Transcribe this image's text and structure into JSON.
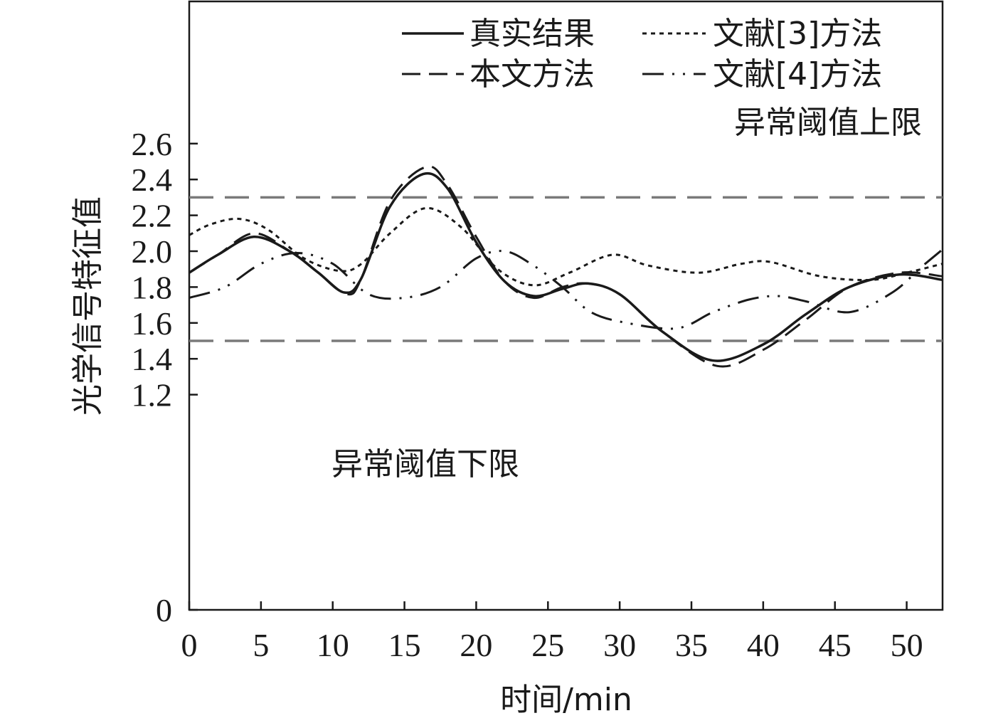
{
  "chart_data": {
    "type": "line",
    "title": "",
    "xlabel": "时间/min",
    "ylabel": "光学信号特征值",
    "xlim": [
      0,
      52.5
    ],
    "ylim": [
      0,
      2.7
    ],
    "x_ticks": [
      0,
      5,
      10,
      15,
      20,
      25,
      30,
      35,
      40,
      45,
      50
    ],
    "y_ticks": [
      0,
      1.2,
      1.4,
      1.6,
      1.8,
      2.0,
      2.2,
      2.4,
      2.6
    ],
    "y_tick_labels": [
      "0",
      "1.2",
      "1.4",
      "1.6",
      "1.8",
      "2.0",
      "2.2",
      "2.4",
      "2.6"
    ],
    "grid": false,
    "legend_position": "top-right",
    "thresholds": [
      {
        "label": "异常阈值上限",
        "value": 2.3
      },
      {
        "label": "异常阈值下限",
        "value": 1.5
      }
    ],
    "series": [
      {
        "name": "真实结果",
        "style": "solid",
        "x": [
          0,
          2,
          4.5,
          7,
          9,
          10.8,
          12,
          14,
          16.3,
          18,
          20,
          22,
          24,
          26,
          27.8,
          30,
          33,
          36.5,
          40,
          43,
          46,
          49.5,
          52.5
        ],
        "y": [
          1.88,
          1.98,
          2.08,
          2.0,
          1.88,
          1.77,
          1.85,
          2.25,
          2.43,
          2.35,
          2.05,
          1.83,
          1.75,
          1.79,
          1.82,
          1.76,
          1.55,
          1.39,
          1.48,
          1.65,
          1.8,
          1.87,
          1.84
        ]
      },
      {
        "name": "本文方法",
        "style": "dashed",
        "x": [
          0,
          2,
          4.5,
          7,
          9,
          11,
          12,
          14,
          16.5,
          18,
          20,
          22,
          24,
          26,
          27.8,
          30,
          33,
          36.8,
          40,
          43,
          46,
          49.5,
          52.5
        ],
        "y": [
          1.88,
          1.98,
          2.1,
          2.0,
          1.88,
          1.76,
          1.85,
          2.28,
          2.47,
          2.37,
          2.08,
          1.83,
          1.74,
          1.8,
          1.82,
          1.76,
          1.55,
          1.36,
          1.45,
          1.62,
          1.8,
          1.88,
          1.86
        ]
      },
      {
        "name": "文献[3]方法",
        "style": "dotted",
        "x": [
          0,
          1.5,
          3.5,
          5.5,
          8,
          10.5,
          12,
          14,
          16.5,
          19,
          21.5,
          24,
          26.5,
          29.5,
          32,
          35.5,
          38.5,
          40.5,
          44,
          47.5,
          50,
          52.5
        ],
        "y": [
          2.09,
          2.15,
          2.18,
          2.12,
          1.96,
          1.89,
          1.93,
          2.1,
          2.24,
          2.13,
          1.9,
          1.81,
          1.88,
          1.98,
          1.92,
          1.88,
          1.93,
          1.94,
          1.86,
          1.84,
          1.88,
          1.93
        ]
      },
      {
        "name": "文献[4]方法",
        "style": "dashdot",
        "x": [
          0,
          2.5,
          5,
          7.5,
          10,
          12.5,
          15,
          17.5,
          20,
          22,
          24,
          26,
          28,
          30.5,
          34,
          36.5,
          39,
          41,
          43,
          46,
          49,
          51,
          52.5
        ],
        "y": [
          1.74,
          1.8,
          1.93,
          1.99,
          1.93,
          1.76,
          1.74,
          1.8,
          1.96,
          2.0,
          1.92,
          1.8,
          1.66,
          1.6,
          1.57,
          1.66,
          1.73,
          1.75,
          1.72,
          1.66,
          1.77,
          1.91,
          2.01
        ]
      }
    ]
  }
}
